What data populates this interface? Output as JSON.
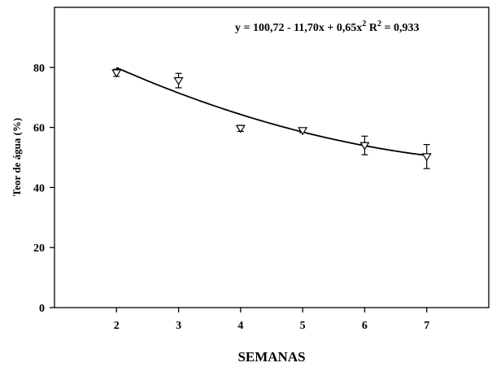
{
  "chart_data": {
    "type": "scatter",
    "xlabel": "SEMANAS",
    "ylabel": "Teor de água (%)",
    "xlim": [
      1,
      8
    ],
    "ylim": [
      0,
      100
    ],
    "xticks": [
      2,
      3,
      4,
      5,
      6,
      7
    ],
    "yticks": [
      0,
      20,
      40,
      60,
      80
    ],
    "grid": false,
    "legend": "none",
    "series": [
      {
        "marker": "triangle-down",
        "x": [
          2,
          3,
          4,
          5,
          6,
          7
        ],
        "y": [
          78.2,
          75.6,
          59.7,
          59.0,
          54.0,
          50.3
        ],
        "err": [
          1.2,
          2.4,
          1.0,
          0.7,
          3.1,
          4.0
        ]
      }
    ],
    "fit": {
      "type": "quadratic",
      "coefficients": [
        100.72,
        -11.7,
        0.65
      ],
      "equation_main": "y = 100,72 - 11,70x + 0,65x",
      "equation_exp": "2",
      "r2_label": "R",
      "r2_exp": "2",
      "r2_value": " = 0,933"
    }
  }
}
